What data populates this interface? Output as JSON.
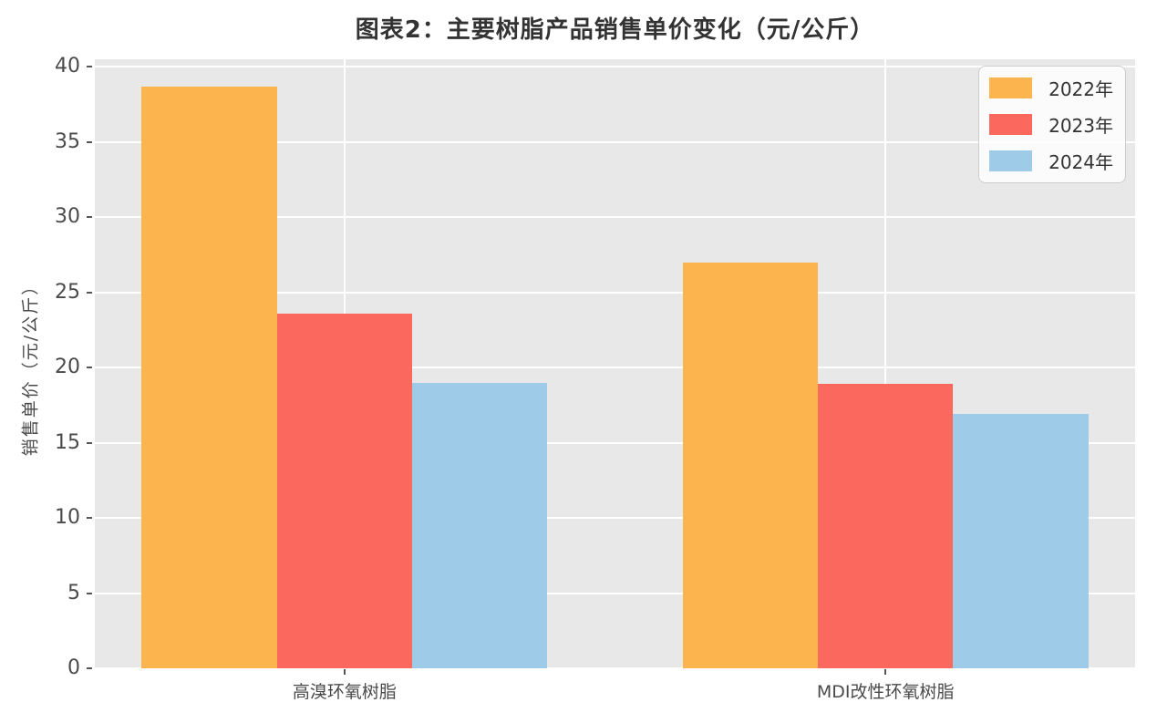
{
  "title": "图表2：主要树脂产品销售单价变化（元/公斤）",
  "ylabel": "销售单价（元/公斤）",
  "colors": {
    "plot_background": "#e8e8e8",
    "gridline": "#ffffff",
    "series_2022": "#fcb44e",
    "series_2023": "#fb695e",
    "series_2024": "#9ecbe8",
    "tick_text": "#4a4a4a",
    "title_text": "#333333"
  },
  "chart_data": {
    "type": "bar",
    "title": "图表2：主要树脂产品销售单价变化（元/公斤）",
    "xlabel": "",
    "ylabel": "销售单价（元/公斤）",
    "categories": [
      "高溴环氧树脂",
      "MDI改性环氧树脂"
    ],
    "series": [
      {
        "name": "2022年",
        "color": "#fcb44e",
        "values": [
          38.7,
          27.0
        ]
      },
      {
        "name": "2023年",
        "color": "#fb695e",
        "values": [
          23.6,
          18.9
        ]
      },
      {
        "name": "2024年",
        "color": "#9ecbe8",
        "values": [
          19.0,
          16.9
        ]
      }
    ],
    "ylim": [
      0,
      40.5
    ],
    "yticks": [
      0,
      5,
      10,
      15,
      20,
      25,
      30,
      35,
      40
    ],
    "grid": true,
    "legend_position": "upper right"
  }
}
